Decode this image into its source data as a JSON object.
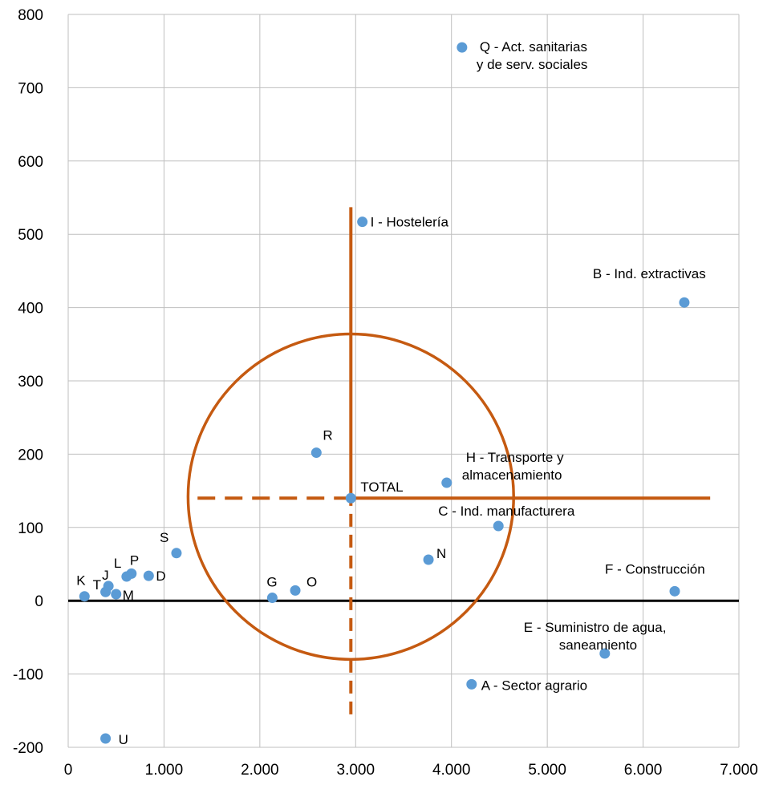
{
  "chart_data": {
    "type": "scatter",
    "title": "",
    "xlabel": "",
    "ylabel": "",
    "xlim": [
      0,
      7000
    ],
    "ylim": [
      -200,
      800
    ],
    "grid": true,
    "x_ticks": [
      0,
      1000,
      2000,
      3000,
      4000,
      5000,
      6000,
      7000
    ],
    "x_tick_labels": [
      "0",
      "1.000",
      "2.000",
      "3.000",
      "4.000",
      "5.000",
      "6.000",
      "7.000"
    ],
    "y_ticks": [
      -200,
      -100,
      0,
      100,
      200,
      300,
      400,
      500,
      600,
      700,
      800
    ],
    "y_tick_labels": [
      "-200",
      "-100",
      "0",
      "100",
      "200",
      "300",
      "400",
      "500",
      "600",
      "700",
      "800"
    ],
    "colors": {
      "points": "#5b9bd5",
      "overlay": "#c55a11",
      "baseline": "#000000",
      "grid": "#bfbfbf"
    },
    "points": [
      {
        "label": "Q - Act. sanitarias",
        "label2": "y de serv. sociales",
        "x": 4110,
        "y": 755
      },
      {
        "label": "I - Hostelería",
        "x": 3070,
        "y": 517
      },
      {
        "label": "B - Ind. extractivas",
        "x": 6430,
        "y": 407
      },
      {
        "label": "R",
        "x": 2590,
        "y": 202
      },
      {
        "label": "H - Transporte y",
        "label2": "almacenamiento",
        "x": 3950,
        "y": 161
      },
      {
        "label": "TOTAL",
        "x": 2950,
        "y": 140
      },
      {
        "label": "C - Ind. manufacturera",
        "x": 4490,
        "y": 102
      },
      {
        "label": "S",
        "x": 1130,
        "y": 65
      },
      {
        "label": "N",
        "x": 3760,
        "y": 56
      },
      {
        "label": "P",
        "x": 660,
        "y": 37
      },
      {
        "label": "L",
        "x": 610,
        "y": 33
      },
      {
        "label": "D",
        "x": 840,
        "y": 34
      },
      {
        "label": "J",
        "x": 420,
        "y": 20
      },
      {
        "label": "T",
        "x": 390,
        "y": 12
      },
      {
        "label": "M",
        "x": 500,
        "y": 9
      },
      {
        "label": "K",
        "x": 170,
        "y": 6
      },
      {
        "label": "G",
        "x": 2130,
        "y": 4
      },
      {
        "label": "O",
        "x": 2370,
        "y": 14
      },
      {
        "label": "F - Construcción",
        "x": 6330,
        "y": 13
      },
      {
        "label": "E - Suministro de agua,",
        "label2": "saneamiento",
        "x": 5600,
        "y": -72
      },
      {
        "label": "A - Sector agrario",
        "x": 4210,
        "y": -114
      },
      {
        "label": "U",
        "x": 390,
        "y": -188
      }
    ],
    "annotations": {
      "circle": {
        "cx": 2950,
        "cy": 142,
        "ry": 222
      },
      "vertical_solid": {
        "x": 2950,
        "y_from": 140,
        "y_to": 537
      },
      "vertical_dashed": {
        "x": 2950,
        "y_from": -155,
        "y_to": 140
      },
      "horizontal_solid": {
        "y": 140,
        "x_from": 2950,
        "x_to": 6700
      },
      "horizontal_dashed": {
        "y": 140,
        "x_from": 1350,
        "x_to": 2950
      }
    }
  }
}
